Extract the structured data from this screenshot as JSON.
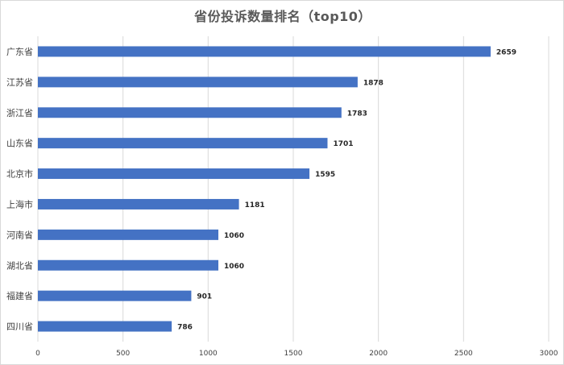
{
  "chart_data": {
    "type": "bar",
    "orientation": "horizontal",
    "title": "省份投诉数量排名（top10）",
    "categories": [
      "广东省",
      "江苏省",
      "浙江省",
      "山东省",
      "北京市",
      "上海市",
      "河南省",
      "湖北省",
      "福建省",
      "四川省"
    ],
    "values": [
      2659,
      1878,
      1783,
      1701,
      1595,
      1181,
      1060,
      1060,
      901,
      786
    ],
    "xlim": [
      0,
      3000
    ],
    "xticks": [
      "0",
      "500",
      "1000",
      "1500",
      "2000",
      "2500",
      "3000"
    ],
    "tick_values": [
      0,
      500,
      1000,
      1500,
      2000,
      2500,
      3000
    ],
    "grid": true,
    "bar_color": "#4472c4",
    "grid_color": "#d9d9d9"
  }
}
